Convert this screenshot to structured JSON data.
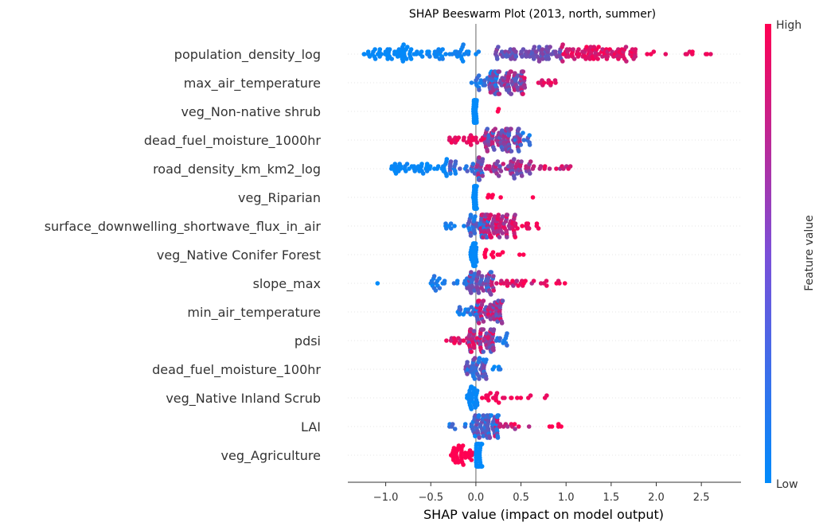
{
  "chart_data": {
    "type": "scatter",
    "subtype": "beeswarm",
    "title": "SHAP Beeswarm Plot (2013, north, summer)",
    "xlabel": "SHAP value (impact on model output)",
    "ylabel": "",
    "xlim": [
      -1.42,
      2.94
    ],
    "x_ticks": [
      -1.0,
      -0.5,
      0.0,
      0.5,
      1.0,
      1.5,
      2.0,
      2.5
    ],
    "x_tick_labels": [
      "−1.0",
      "−0.5",
      "0.0",
      "0.5",
      "1.0",
      "1.5",
      "2.0",
      "2.5"
    ],
    "grid": false,
    "colorbar": {
      "label": "Feature value",
      "high": "High",
      "low": "Low",
      "low_color": "#008bfb",
      "high_color": "#ff0052"
    },
    "features": [
      {
        "name": "population_density_log",
        "segments": [
          {
            "x0": -1.25,
            "x1": -0.6,
            "n": 55,
            "c0": 0.0,
            "c1": 0.04
          },
          {
            "x0": -0.6,
            "x1": 0.05,
            "n": 40,
            "c0": 0.0,
            "c1": 0.1
          },
          {
            "x0": 0.2,
            "x1": 0.95,
            "n": 75,
            "c0": 0.3,
            "c1": 0.55
          },
          {
            "x0": 0.95,
            "x1": 1.8,
            "n": 90,
            "c0": 0.75,
            "c1": 1.0
          },
          {
            "x0": 1.8,
            "x1": 2.75,
            "n": 12,
            "c0": 0.85,
            "c1": 1.0
          }
        ]
      },
      {
        "name": "max_air_temperature",
        "segments": [
          {
            "x0": -0.05,
            "x1": 0.25,
            "n": 30,
            "c0": 0.0,
            "c1": 0.3
          },
          {
            "x0": 0.15,
            "x1": 0.55,
            "n": 80,
            "c0": 0.25,
            "c1": 0.8
          },
          {
            "x0": 0.5,
            "x1": 0.95,
            "n": 15,
            "c0": 0.8,
            "c1": 1.0
          }
        ]
      },
      {
        "name": "veg_Non-native shrub",
        "segments": [
          {
            "x0": -0.03,
            "x1": 0.01,
            "n": 35,
            "c0": 0.0,
            "c1": 0.02
          },
          {
            "x0": 0.24,
            "x1": 0.34,
            "n": 2,
            "c0": 1.0,
            "c1": 1.0
          }
        ]
      },
      {
        "name": "dead_fuel_moisture_1000hr",
        "segments": [
          {
            "x0": -0.3,
            "x1": 0.1,
            "n": 25,
            "c0": 0.85,
            "c1": 1.0
          },
          {
            "x0": 0.1,
            "x1": 0.5,
            "n": 80,
            "c0": 0.2,
            "c1": 0.8
          },
          {
            "x0": 0.4,
            "x1": 0.62,
            "n": 12,
            "c0": 0.05,
            "c1": 0.4
          }
        ]
      },
      {
        "name": "road_density_km_km2_log",
        "segments": [
          {
            "x0": -0.95,
            "x1": -0.3,
            "n": 50,
            "c0": 0.0,
            "c1": 0.06
          },
          {
            "x0": -0.3,
            "x1": 0.1,
            "n": 30,
            "c0": 0.05,
            "c1": 0.45
          },
          {
            "x0": -0.05,
            "x1": 0.6,
            "n": 70,
            "c0": 0.35,
            "c1": 0.85
          },
          {
            "x0": 0.6,
            "x1": 1.05,
            "n": 15,
            "c0": 0.6,
            "c1": 1.0
          }
        ]
      },
      {
        "name": "veg_Riparian",
        "segments": [
          {
            "x0": -0.03,
            "x1": 0.01,
            "n": 40,
            "c0": 0.0,
            "c1": 0.02
          },
          {
            "x0": 0.1,
            "x1": 0.3,
            "n": 5,
            "c0": 1.0,
            "c1": 1.0
          },
          {
            "x0": 0.63,
            "x1": 0.65,
            "n": 1,
            "c0": 1.0,
            "c1": 1.0
          }
        ]
      },
      {
        "name": "surface_downwelling_shortwave_flux_in_air",
        "segments": [
          {
            "x0": -0.38,
            "x1": -0.05,
            "n": 10,
            "c0": 0.0,
            "c1": 0.15
          },
          {
            "x0": -0.1,
            "x1": 0.15,
            "n": 40,
            "c0": 0.05,
            "c1": 0.45
          },
          {
            "x0": 0.05,
            "x1": 0.45,
            "n": 85,
            "c0": 0.55,
            "c1": 1.0
          },
          {
            "x0": 0.4,
            "x1": 0.7,
            "n": 12,
            "c0": 0.8,
            "c1": 1.0
          }
        ]
      },
      {
        "name": "veg_Native Conifer Forest",
        "segments": [
          {
            "x0": -0.06,
            "x1": 0.01,
            "n": 35,
            "c0": 0.0,
            "c1": 0.03
          },
          {
            "x0": 0.08,
            "x1": 0.3,
            "n": 10,
            "c0": 1.0,
            "c1": 1.0
          },
          {
            "x0": 0.42,
            "x1": 0.53,
            "n": 2,
            "c0": 1.0,
            "c1": 1.0
          }
        ]
      },
      {
        "name": "slope_max",
        "segments": [
          {
            "x0": -1.1,
            "x1": -1.08,
            "n": 1,
            "c0": 0.0,
            "c1": 0.0
          },
          {
            "x0": -0.5,
            "x1": -0.05,
            "n": 25,
            "c0": 0.0,
            "c1": 0.2
          },
          {
            "x0": -0.1,
            "x1": 0.2,
            "n": 55,
            "c0": 0.15,
            "c1": 0.65
          },
          {
            "x0": 0.15,
            "x1": 0.65,
            "n": 25,
            "c0": 0.6,
            "c1": 1.0
          },
          {
            "x0": 0.7,
            "x1": 1.08,
            "n": 8,
            "c0": 0.85,
            "c1": 1.0
          }
        ]
      },
      {
        "name": "min_air_temperature",
        "segments": [
          {
            "x0": -0.2,
            "x1": 0.05,
            "n": 20,
            "c0": 0.0,
            "c1": 0.3
          },
          {
            "x0": 0.0,
            "x1": 0.3,
            "n": 60,
            "c0": 0.3,
            "c1": 0.95
          }
        ]
      },
      {
        "name": "pdsi",
        "segments": [
          {
            "x0": -0.35,
            "x1": -0.05,
            "n": 15,
            "c0": 0.7,
            "c1": 1.0
          },
          {
            "x0": -0.1,
            "x1": 0.2,
            "n": 65,
            "c0": 0.3,
            "c1": 0.95
          },
          {
            "x0": 0.15,
            "x1": 0.35,
            "n": 12,
            "c0": 0.05,
            "c1": 0.35
          }
        ]
      },
      {
        "name": "dead_fuel_moisture_100hr",
        "segments": [
          {
            "x0": -0.12,
            "x1": 0.12,
            "n": 45,
            "c0": 0.05,
            "c1": 0.55
          },
          {
            "x0": 0.1,
            "x1": 0.28,
            "n": 6,
            "c0": 0.0,
            "c1": 0.15
          }
        ]
      },
      {
        "name": "veg_Native Inland Scrub",
        "segments": [
          {
            "x0": -0.1,
            "x1": 0.02,
            "n": 30,
            "c0": 0.0,
            "c1": 0.05
          },
          {
            "x0": 0.02,
            "x1": 0.32,
            "n": 15,
            "c0": 0.9,
            "c1": 1.0
          },
          {
            "x0": 0.38,
            "x1": 0.8,
            "n": 8,
            "c0": 0.9,
            "c1": 1.0
          }
        ]
      },
      {
        "name": "LAI",
        "segments": [
          {
            "x0": -0.3,
            "x1": 0.0,
            "n": 12,
            "c0": 0.0,
            "c1": 0.3
          },
          {
            "x0": -0.05,
            "x1": 0.25,
            "n": 70,
            "c0": 0.05,
            "c1": 0.5
          },
          {
            "x0": 0.2,
            "x1": 0.6,
            "n": 15,
            "c0": 0.6,
            "c1": 1.0
          },
          {
            "x0": 0.8,
            "x1": 0.98,
            "n": 5,
            "c0": 1.0,
            "c1": 1.0
          }
        ]
      },
      {
        "name": "veg_Agriculture",
        "segments": [
          {
            "x0": -0.3,
            "x1": -0.03,
            "n": 35,
            "c0": 1.0,
            "c1": 1.0
          },
          {
            "x0": 0.0,
            "x1": 0.07,
            "n": 65,
            "c0": 0.0,
            "c1": 0.02
          }
        ]
      }
    ]
  }
}
